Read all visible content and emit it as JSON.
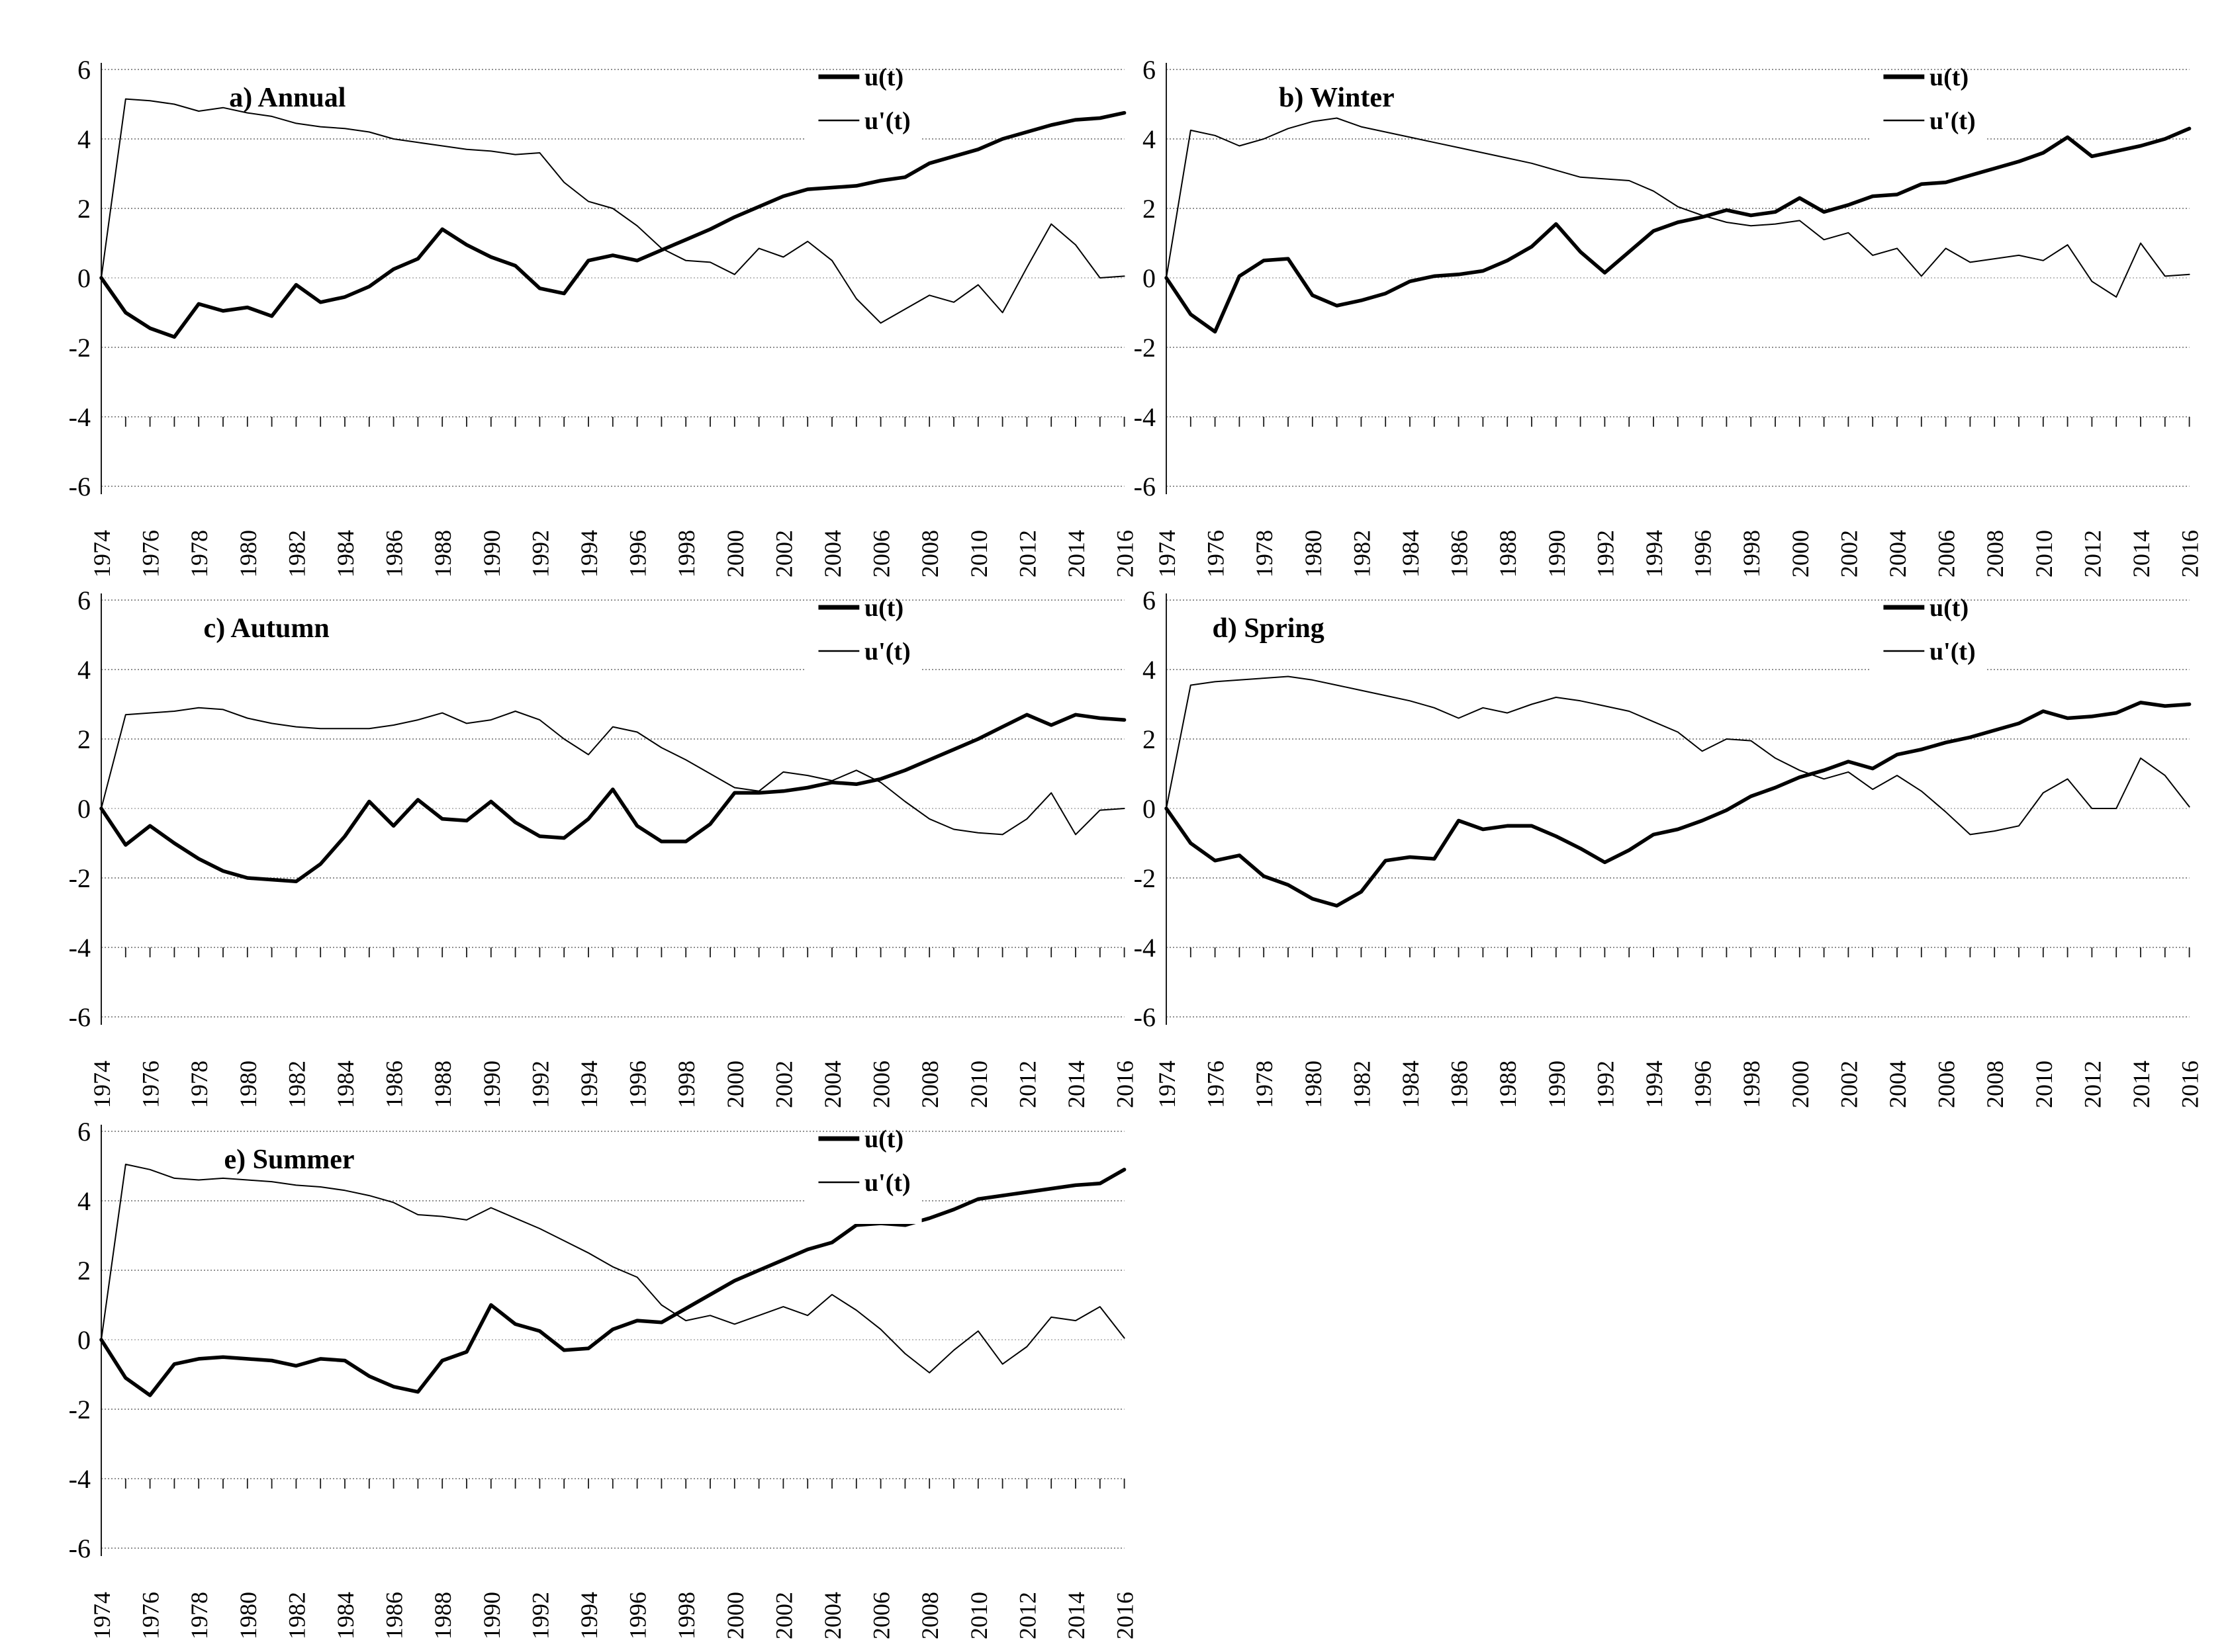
{
  "figure": {
    "background": "#ffffff",
    "panels_count": 5,
    "x_axis_labels": [
      "1974",
      "1976",
      "1978",
      "1980",
      "1982",
      "1984",
      "1986",
      "1988",
      "1990",
      "1992",
      "1994",
      "1996",
      "1998",
      "2000",
      "2002",
      "2004",
      "2006",
      "2008",
      "2010",
      "2012",
      "2014",
      "2016"
    ],
    "y_axis_labels": [
      "6",
      "4",
      "2",
      "0",
      "-2",
      "-4",
      "-6"
    ]
  },
  "style": {
    "line_color": "#000000",
    "grid_color": "#6b6b6b",
    "zero_grid_color": "#a8a8a8",
    "axis_color": "#1a1a1a"
  },
  "legend": {
    "thick_label": "u(t)",
    "thin_label": "u'(t)"
  },
  "chart_data": [
    {
      "id": "a",
      "type": "line",
      "title": "a) Annual",
      "title_x_frac": 0.125,
      "x": {
        "start": 1974,
        "end": 2016,
        "step": 1
      },
      "ylim": [
        -6,
        6
      ],
      "yticks": [
        6,
        4,
        2,
        0,
        -2,
        -4,
        -6
      ],
      "grid": "dotted-horizontal",
      "legend_position": "inset-top-right",
      "series": [
        {
          "name": "u(t)",
          "weight": "thick",
          "values": [
            0,
            -1.0,
            -1.45,
            -1.7,
            -0.75,
            -0.95,
            -0.85,
            -1.1,
            -0.2,
            -0.7,
            -0.55,
            -0.25,
            0.25,
            0.55,
            1.4,
            0.95,
            0.6,
            0.35,
            -0.3,
            -0.45,
            0.5,
            0.65,
            0.5,
            0.8,
            1.1,
            1.4,
            1.75,
            2.05,
            2.35,
            2.55,
            2.6,
            2.65,
            2.8,
            2.9,
            3.3,
            3.5,
            3.7,
            4.0,
            4.2,
            4.4,
            4.55,
            4.6,
            4.75
          ]
        },
        {
          "name": "u'(t)",
          "weight": "thin",
          "values": [
            0,
            5.15,
            5.1,
            5.0,
            4.8,
            4.9,
            4.75,
            4.65,
            4.45,
            4.35,
            4.3,
            4.2,
            4.0,
            3.9,
            3.8,
            3.7,
            3.65,
            3.55,
            3.6,
            2.75,
            2.2,
            2.0,
            1.5,
            0.85,
            0.5,
            0.45,
            0.1,
            0.85,
            0.6,
            1.05,
            0.5,
            -0.6,
            -1.3,
            -0.9,
            -0.5,
            -0.7,
            -0.2,
            -1.0,
            0.3,
            1.55,
            0.95,
            0.0,
            0.05
          ]
        }
      ]
    },
    {
      "id": "b",
      "type": "line",
      "title": "b) Winter",
      "title_x_frac": 0.11,
      "x": {
        "start": 1974,
        "end": 2016,
        "step": 1
      },
      "ylim": [
        -6,
        6
      ],
      "yticks": [
        6,
        4,
        2,
        0,
        -2,
        -4,
        -6
      ],
      "grid": "dotted-horizontal",
      "legend_position": "inset-top-right",
      "series": [
        {
          "name": "u(t)",
          "weight": "thick",
          "values": [
            0,
            -1.05,
            -1.55,
            0.05,
            0.5,
            0.55,
            -0.5,
            -0.8,
            -0.65,
            -0.45,
            -0.1,
            0.05,
            0.1,
            0.2,
            0.5,
            0.9,
            1.55,
            0.75,
            0.15,
            0.75,
            1.35,
            1.6,
            1.75,
            1.95,
            1.8,
            1.9,
            2.3,
            1.9,
            2.1,
            2.35,
            2.4,
            2.7,
            2.75,
            2.95,
            3.15,
            3.35,
            3.6,
            4.05,
            3.5,
            3.65,
            3.8,
            4.0,
            4.3
          ]
        },
        {
          "name": "u'(t)",
          "weight": "thin",
          "values": [
            0,
            4.25,
            4.1,
            3.8,
            4.0,
            4.3,
            4.5,
            4.6,
            4.35,
            4.2,
            4.05,
            3.9,
            3.75,
            3.6,
            3.45,
            3.3,
            3.1,
            2.9,
            2.85,
            2.8,
            2.5,
            2.05,
            1.8,
            1.6,
            1.5,
            1.55,
            1.65,
            1.1,
            1.3,
            0.65,
            0.85,
            0.05,
            0.85,
            0.45,
            0.55,
            0.65,
            0.5,
            0.95,
            -0.1,
            -0.55,
            1.0,
            0.05,
            0.1
          ]
        }
      ]
    },
    {
      "id": "c",
      "type": "line",
      "title": "c) Autumn",
      "title_x_frac": 0.1,
      "x": {
        "start": 1974,
        "end": 2016,
        "step": 1
      },
      "ylim": [
        -6,
        6
      ],
      "yticks": [
        6,
        4,
        2,
        0,
        -2,
        -4,
        -6
      ],
      "grid": "dotted-horizontal",
      "legend_position": "inset-top-right",
      "series": [
        {
          "name": "u(t)",
          "weight": "thick",
          "values": [
            0,
            -1.05,
            -0.5,
            -1.0,
            -1.45,
            -1.8,
            -2.0,
            -2.05,
            -2.1,
            -1.6,
            -0.8,
            0.2,
            -0.5,
            0.25,
            -0.3,
            -0.35,
            0.2,
            -0.4,
            -0.8,
            -0.85,
            -0.3,
            0.55,
            -0.5,
            -0.95,
            -0.95,
            -0.45,
            0.45,
            0.45,
            0.5,
            0.6,
            0.75,
            0.7,
            0.85,
            1.1,
            1.4,
            1.7,
            2.0,
            2.35,
            2.7,
            2.4,
            2.7,
            2.6,
            2.55
          ]
        },
        {
          "name": "u'(t)",
          "weight": "thin",
          "values": [
            0,
            2.7,
            2.75,
            2.8,
            2.9,
            2.85,
            2.6,
            2.45,
            2.35,
            2.3,
            2.3,
            2.3,
            2.4,
            2.55,
            2.75,
            2.45,
            2.55,
            2.8,
            2.55,
            2.0,
            1.55,
            2.35,
            2.2,
            1.75,
            1.4,
            1.0,
            0.6,
            0.5,
            1.05,
            0.95,
            0.8,
            1.1,
            0.75,
            0.2,
            -0.3,
            -0.6,
            -0.7,
            -0.75,
            -0.3,
            0.45,
            -0.75,
            -0.05,
            0.0
          ]
        }
      ]
    },
    {
      "id": "d",
      "type": "line",
      "title": "d) Spring",
      "title_x_frac": 0.045,
      "x": {
        "start": 1974,
        "end": 2016,
        "step": 1
      },
      "ylim": [
        -6,
        6
      ],
      "yticks": [
        6,
        4,
        2,
        0,
        -2,
        -4,
        -6
      ],
      "grid": "dotted-horizontal",
      "legend_position": "inset-top-right",
      "series": [
        {
          "name": "u(t)",
          "weight": "thick",
          "values": [
            0,
            -1.0,
            -1.5,
            -1.35,
            -1.95,
            -2.2,
            -2.6,
            -2.8,
            -2.4,
            -1.5,
            -1.4,
            -1.45,
            -0.35,
            -0.6,
            -0.5,
            -0.5,
            -0.8,
            -1.15,
            -1.55,
            -1.2,
            -0.75,
            -0.6,
            -0.35,
            -0.05,
            0.35,
            0.6,
            0.9,
            1.1,
            1.35,
            1.15,
            1.55,
            1.7,
            1.9,
            2.05,
            2.25,
            2.45,
            2.8,
            2.6,
            2.65,
            2.75,
            3.05,
            2.95,
            3.0
          ]
        },
        {
          "name": "u'(t)",
          "weight": "thin",
          "values": [
            0,
            3.55,
            3.65,
            3.7,
            3.75,
            3.8,
            3.7,
            3.55,
            3.4,
            3.25,
            3.1,
            2.9,
            2.6,
            2.9,
            2.75,
            3.0,
            3.2,
            3.1,
            2.95,
            2.8,
            2.5,
            2.2,
            1.65,
            2.0,
            1.95,
            1.45,
            1.1,
            0.85,
            1.05,
            0.55,
            0.95,
            0.5,
            -0.1,
            -0.75,
            -0.65,
            -0.5,
            0.45,
            0.85,
            0.0,
            0.0,
            1.45,
            0.95,
            0.05
          ]
        }
      ]
    },
    {
      "id": "e",
      "type": "line",
      "title": "e) Summer",
      "title_x_frac": 0.12,
      "x": {
        "start": 1974,
        "end": 2016,
        "step": 1
      },
      "ylim": [
        -6,
        6
      ],
      "yticks": [
        6,
        4,
        2,
        0,
        -2,
        -4,
        -6
      ],
      "grid": "dotted-horizontal",
      "legend_position": "inset-top-right",
      "series": [
        {
          "name": "u(t)",
          "weight": "thick",
          "values": [
            0,
            -1.1,
            -1.6,
            -0.7,
            -0.55,
            -0.5,
            -0.55,
            -0.6,
            -0.75,
            -0.55,
            -0.6,
            -1.05,
            -1.35,
            -1.5,
            -0.6,
            -0.35,
            1.0,
            0.45,
            0.25,
            -0.3,
            -0.25,
            0.3,
            0.55,
            0.5,
            0.9,
            1.3,
            1.7,
            2.0,
            2.3,
            2.6,
            2.8,
            3.3,
            3.35,
            3.3,
            3.5,
            3.75,
            4.05,
            4.15,
            4.25,
            4.35,
            4.45,
            4.5,
            4.9
          ]
        },
        {
          "name": "u'(t)",
          "weight": "thin",
          "values": [
            0,
            5.05,
            4.9,
            4.65,
            4.6,
            4.65,
            4.6,
            4.55,
            4.45,
            4.4,
            4.3,
            4.15,
            3.95,
            3.6,
            3.55,
            3.45,
            3.8,
            3.5,
            3.2,
            2.85,
            2.5,
            2.1,
            1.8,
            1.0,
            0.55,
            0.7,
            0.45,
            0.7,
            0.95,
            0.7,
            1.3,
            0.85,
            0.3,
            -0.4,
            -0.95,
            -0.3,
            0.25,
            -0.7,
            -0.2,
            0.65,
            0.55,
            0.95,
            0.05
          ]
        }
      ]
    }
  ]
}
